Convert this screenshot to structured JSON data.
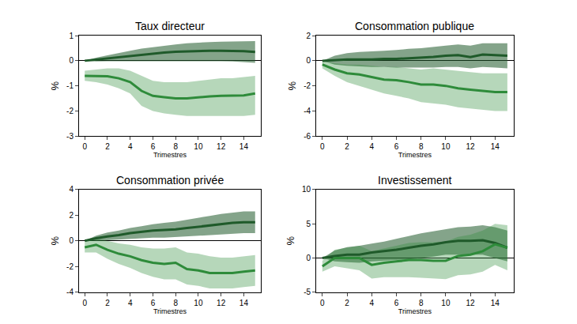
{
  "chart_data": [
    {
      "type": "line",
      "title": "Taux directeur",
      "x_label": "Trimestres",
      "y_label": "%",
      "x": [
        0,
        1,
        2,
        3,
        4,
        5,
        6,
        7,
        8,
        9,
        10,
        11,
        12,
        13,
        14,
        15
      ],
      "xlim": [
        -0.5,
        15.5
      ],
      "xticks": [
        0,
        2,
        4,
        6,
        8,
        10,
        12,
        14
      ],
      "ylim": [
        -3,
        1
      ],
      "yticks": [
        -3,
        -2,
        -1,
        0,
        1
      ],
      "grid": false,
      "series": [
        {
          "color": "#1f5a2a",
          "values": [
            0,
            0.05,
            0.1,
            0.15,
            0.2,
            0.25,
            0.3,
            0.33,
            0.36,
            0.38,
            0.4,
            0.4,
            0.4,
            0.4,
            0.38,
            0.35
          ],
          "lower": [
            0,
            -0.03,
            -0.02,
            -0.02,
            0,
            0,
            0,
            0,
            0,
            0,
            0,
            0,
            -0.02,
            -0.03,
            -0.05,
            -0.08
          ],
          "upper": [
            0,
            0.12,
            0.22,
            0.32,
            0.4,
            0.48,
            0.55,
            0.6,
            0.65,
            0.7,
            0.72,
            0.74,
            0.76,
            0.78,
            0.78,
            0.78
          ]
        },
        {
          "color": "#2e8b3a",
          "values": [
            -0.6,
            -0.6,
            -0.62,
            -0.7,
            -0.85,
            -1.2,
            -1.4,
            -1.45,
            -1.5,
            -1.5,
            -1.45,
            -1.42,
            -1.4,
            -1.4,
            -1.38,
            -1.3
          ],
          "lower": [
            -0.8,
            -0.85,
            -0.95,
            -1.1,
            -1.3,
            -1.8,
            -2.0,
            -2.1,
            -2.15,
            -2.2,
            -2.2,
            -2.2,
            -2.2,
            -2.2,
            -2.2,
            -2.15
          ],
          "upper": [
            -0.4,
            -0.35,
            -0.3,
            -0.3,
            -0.4,
            -0.6,
            -0.8,
            -0.85,
            -0.85,
            -0.85,
            -0.8,
            -0.75,
            -0.7,
            -0.7,
            -0.65,
            -0.6
          ]
        }
      ]
    },
    {
      "type": "line",
      "title": "Consommation publique",
      "x_label": "Trimestres",
      "y_label": "%",
      "x": [
        0,
        1,
        2,
        3,
        4,
        5,
        6,
        7,
        8,
        9,
        10,
        11,
        12,
        13,
        14,
        15
      ],
      "xlim": [
        -0.5,
        15.5
      ],
      "xticks": [
        0,
        2,
        4,
        6,
        8,
        10,
        12,
        14
      ],
      "ylim": [
        -6,
        2
      ],
      "yticks": [
        -6,
        -4,
        -2,
        0,
        2
      ],
      "grid": false,
      "series": [
        {
          "color": "#1f5a2a",
          "values": [
            0,
            0.05,
            0.1,
            0.1,
            0.1,
            0.15,
            0.15,
            0.2,
            0.25,
            0.3,
            0.4,
            0.45,
            0.3,
            0.5,
            0.45,
            0.4
          ],
          "lower": [
            0,
            -0.3,
            -0.4,
            -0.45,
            -0.5,
            -0.5,
            -0.55,
            -0.55,
            -0.55,
            -0.55,
            -0.5,
            -0.5,
            -0.6,
            -0.5,
            -0.55,
            -0.6
          ],
          "upper": [
            0,
            0.4,
            0.6,
            0.7,
            0.75,
            0.8,
            0.85,
            0.95,
            1.0,
            1.1,
            1.2,
            1.3,
            1.2,
            1.4,
            1.4,
            1.4
          ]
        },
        {
          "color": "#2e8b3a",
          "values": [
            -0.3,
            -0.7,
            -1.0,
            -1.1,
            -1.3,
            -1.5,
            -1.55,
            -1.7,
            -1.9,
            -1.9,
            -2.0,
            -2.2,
            -2.3,
            -2.4,
            -2.5,
            -2.5
          ],
          "lower": [
            -0.6,
            -1.2,
            -1.7,
            -2.0,
            -2.3,
            -2.6,
            -2.8,
            -3.0,
            -3.3,
            -3.4,
            -3.5,
            -3.7,
            -3.8,
            -3.9,
            -4.0,
            -4.0
          ],
          "upper": [
            0,
            -0.2,
            -0.3,
            -0.3,
            -0.4,
            -0.5,
            -0.5,
            -0.6,
            -0.7,
            -0.6,
            -0.7,
            -0.8,
            -0.9,
            -1.0,
            -1.0,
            -1.0
          ]
        }
      ]
    },
    {
      "type": "line",
      "title": "Consommation privée",
      "x_label": "Trimestres",
      "y_label": "%",
      "x": [
        0,
        1,
        2,
        3,
        4,
        5,
        6,
        7,
        8,
        9,
        10,
        11,
        12,
        13,
        14,
        15
      ],
      "xlim": [
        -0.5,
        15.5
      ],
      "xticks": [
        0,
        2,
        4,
        6,
        8,
        10,
        12,
        14
      ],
      "ylim": [
        -4,
        4
      ],
      "yticks": [
        -4,
        -2,
        0,
        2,
        4
      ],
      "grid": false,
      "series": [
        {
          "color": "#1f5a2a",
          "values": [
            0,
            0.2,
            0.35,
            0.45,
            0.6,
            0.7,
            0.8,
            0.85,
            0.9,
            1.0,
            1.1,
            1.2,
            1.3,
            1.4,
            1.45,
            1.45
          ],
          "lower": [
            0,
            0,
            0.05,
            0.1,
            0.15,
            0.2,
            0.25,
            0.25,
            0.3,
            0.35,
            0.4,
            0.45,
            0.5,
            0.55,
            0.6,
            0.6
          ],
          "upper": [
            0,
            0.4,
            0.65,
            0.8,
            1.0,
            1.15,
            1.3,
            1.4,
            1.5,
            1.65,
            1.8,
            1.95,
            2.1,
            2.2,
            2.3,
            2.3
          ]
        },
        {
          "color": "#2e8b3a",
          "values": [
            -0.5,
            -0.3,
            -0.7,
            -1.0,
            -1.2,
            -1.5,
            -1.7,
            -1.8,
            -1.7,
            -2.2,
            -2.3,
            -2.5,
            -2.5,
            -2.5,
            -2.4,
            -2.3
          ],
          "lower": [
            -0.9,
            -0.9,
            -1.4,
            -1.8,
            -2.1,
            -2.5,
            -2.8,
            -3.0,
            -3.0,
            -3.4,
            -3.5,
            -3.7,
            -3.7,
            -3.7,
            -3.6,
            -3.5
          ],
          "upper": [
            -0.1,
            0.2,
            0,
            -0.2,
            -0.3,
            -0.5,
            -0.6,
            -0.6,
            -0.5,
            -0.9,
            -1.0,
            -1.2,
            -1.3,
            -1.3,
            -1.2,
            -1.1
          ]
        }
      ]
    },
    {
      "type": "line",
      "title": "Investissement",
      "x_label": "Trimestres",
      "y_label": "%",
      "x": [
        0,
        1,
        2,
        3,
        4,
        5,
        6,
        7,
        8,
        9,
        10,
        11,
        12,
        13,
        14,
        15
      ],
      "xlim": [
        -0.5,
        15.5
      ],
      "xticks": [
        0,
        2,
        4,
        6,
        8,
        10,
        12,
        14
      ],
      "ylim": [
        -5,
        10
      ],
      "yticks": [
        -5,
        0,
        5,
        10
      ],
      "grid": false,
      "series": [
        {
          "color": "#1f5a2a",
          "values": [
            0,
            0.3,
            0.5,
            0.5,
            0.8,
            1.0,
            1.2,
            1.5,
            1.8,
            2.0,
            2.3,
            2.5,
            2.5,
            2.6,
            2.2,
            1.5
          ],
          "lower": [
            0,
            -0.5,
            -0.6,
            -0.7,
            -0.5,
            -0.4,
            -0.3,
            -0.2,
            0,
            0.2,
            0.5,
            0.5,
            0.5,
            0.5,
            0,
            -0.5
          ],
          "upper": [
            0,
            1.1,
            1.6,
            1.8,
            2.1,
            2.4,
            2.8,
            3.2,
            3.6,
            3.9,
            4.2,
            4.5,
            4.6,
            4.8,
            4.5,
            4.0
          ]
        },
        {
          "color": "#2e8b3a",
          "values": [
            -1.2,
            0,
            0,
            0,
            -1.0,
            -0.7,
            -0.5,
            -0.3,
            -0.3,
            -0.4,
            -0.4,
            0.3,
            0.5,
            1.0,
            2.0,
            1.5
          ],
          "lower": [
            -2.0,
            -1.2,
            -1.5,
            -1.8,
            -3.0,
            -2.8,
            -2.8,
            -2.8,
            -2.9,
            -3.0,
            -3.1,
            -2.5,
            -2.4,
            -2.0,
            -1.0,
            -1.8
          ],
          "upper": [
            -0.4,
            1.2,
            1.5,
            1.8,
            1.0,
            1.4,
            1.8,
            2.2,
            2.3,
            2.3,
            2.4,
            3.1,
            3.4,
            4.0,
            5.0,
            4.8
          ]
        }
      ]
    }
  ]
}
